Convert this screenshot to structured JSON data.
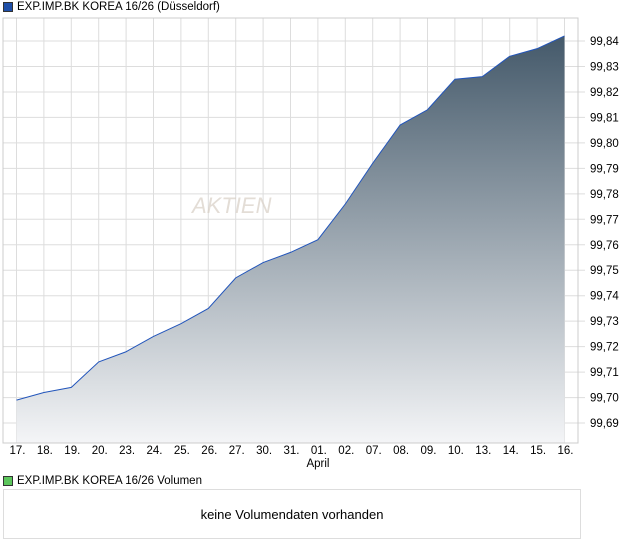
{
  "chart_data": {
    "type": "area",
    "title": "EXP.IMP.BK KOREA 16/26 (Düsseldorf)",
    "categories": [
      "17.",
      "18.",
      "19.",
      "20.",
      "23.",
      "24.",
      "25.",
      "26.",
      "27.",
      "30.",
      "31.",
      "01.",
      "02.",
      "07.",
      "08.",
      "09.",
      "10.",
      "13.",
      "14.",
      "15.",
      "16."
    ],
    "month_label": "April",
    "values": [
      99.699,
      99.702,
      99.704,
      99.714,
      99.718,
      99.724,
      99.729,
      99.735,
      99.747,
      99.753,
      99.757,
      99.762,
      99.776,
      99.792,
      99.807,
      99.813,
      99.825,
      99.826,
      99.834,
      99.837,
      99.842
    ],
    "yticks": [
      "99,84",
      "99,83",
      "99,82",
      "99,81",
      "99,80",
      "99,79",
      "99,78",
      "99,77",
      "99,76",
      "99,75",
      "99,74",
      "99,73",
      "99,72",
      "99,71",
      "99,70",
      "99,69"
    ],
    "ylim": [
      99.681,
      99.84
    ],
    "grid": true,
    "line_color": "#2255bb",
    "fill_top": "#44596a",
    "fill_bottom": "#f4f5f7",
    "legend_color": "#1f4fa8"
  },
  "volume": {
    "legend": "EXP.IMP.BK KOREA 16/26 Volumen",
    "legend_color": "#5cc65c",
    "message": "keine Volumendaten vorhanden"
  },
  "watermark": "AKTIEN"
}
